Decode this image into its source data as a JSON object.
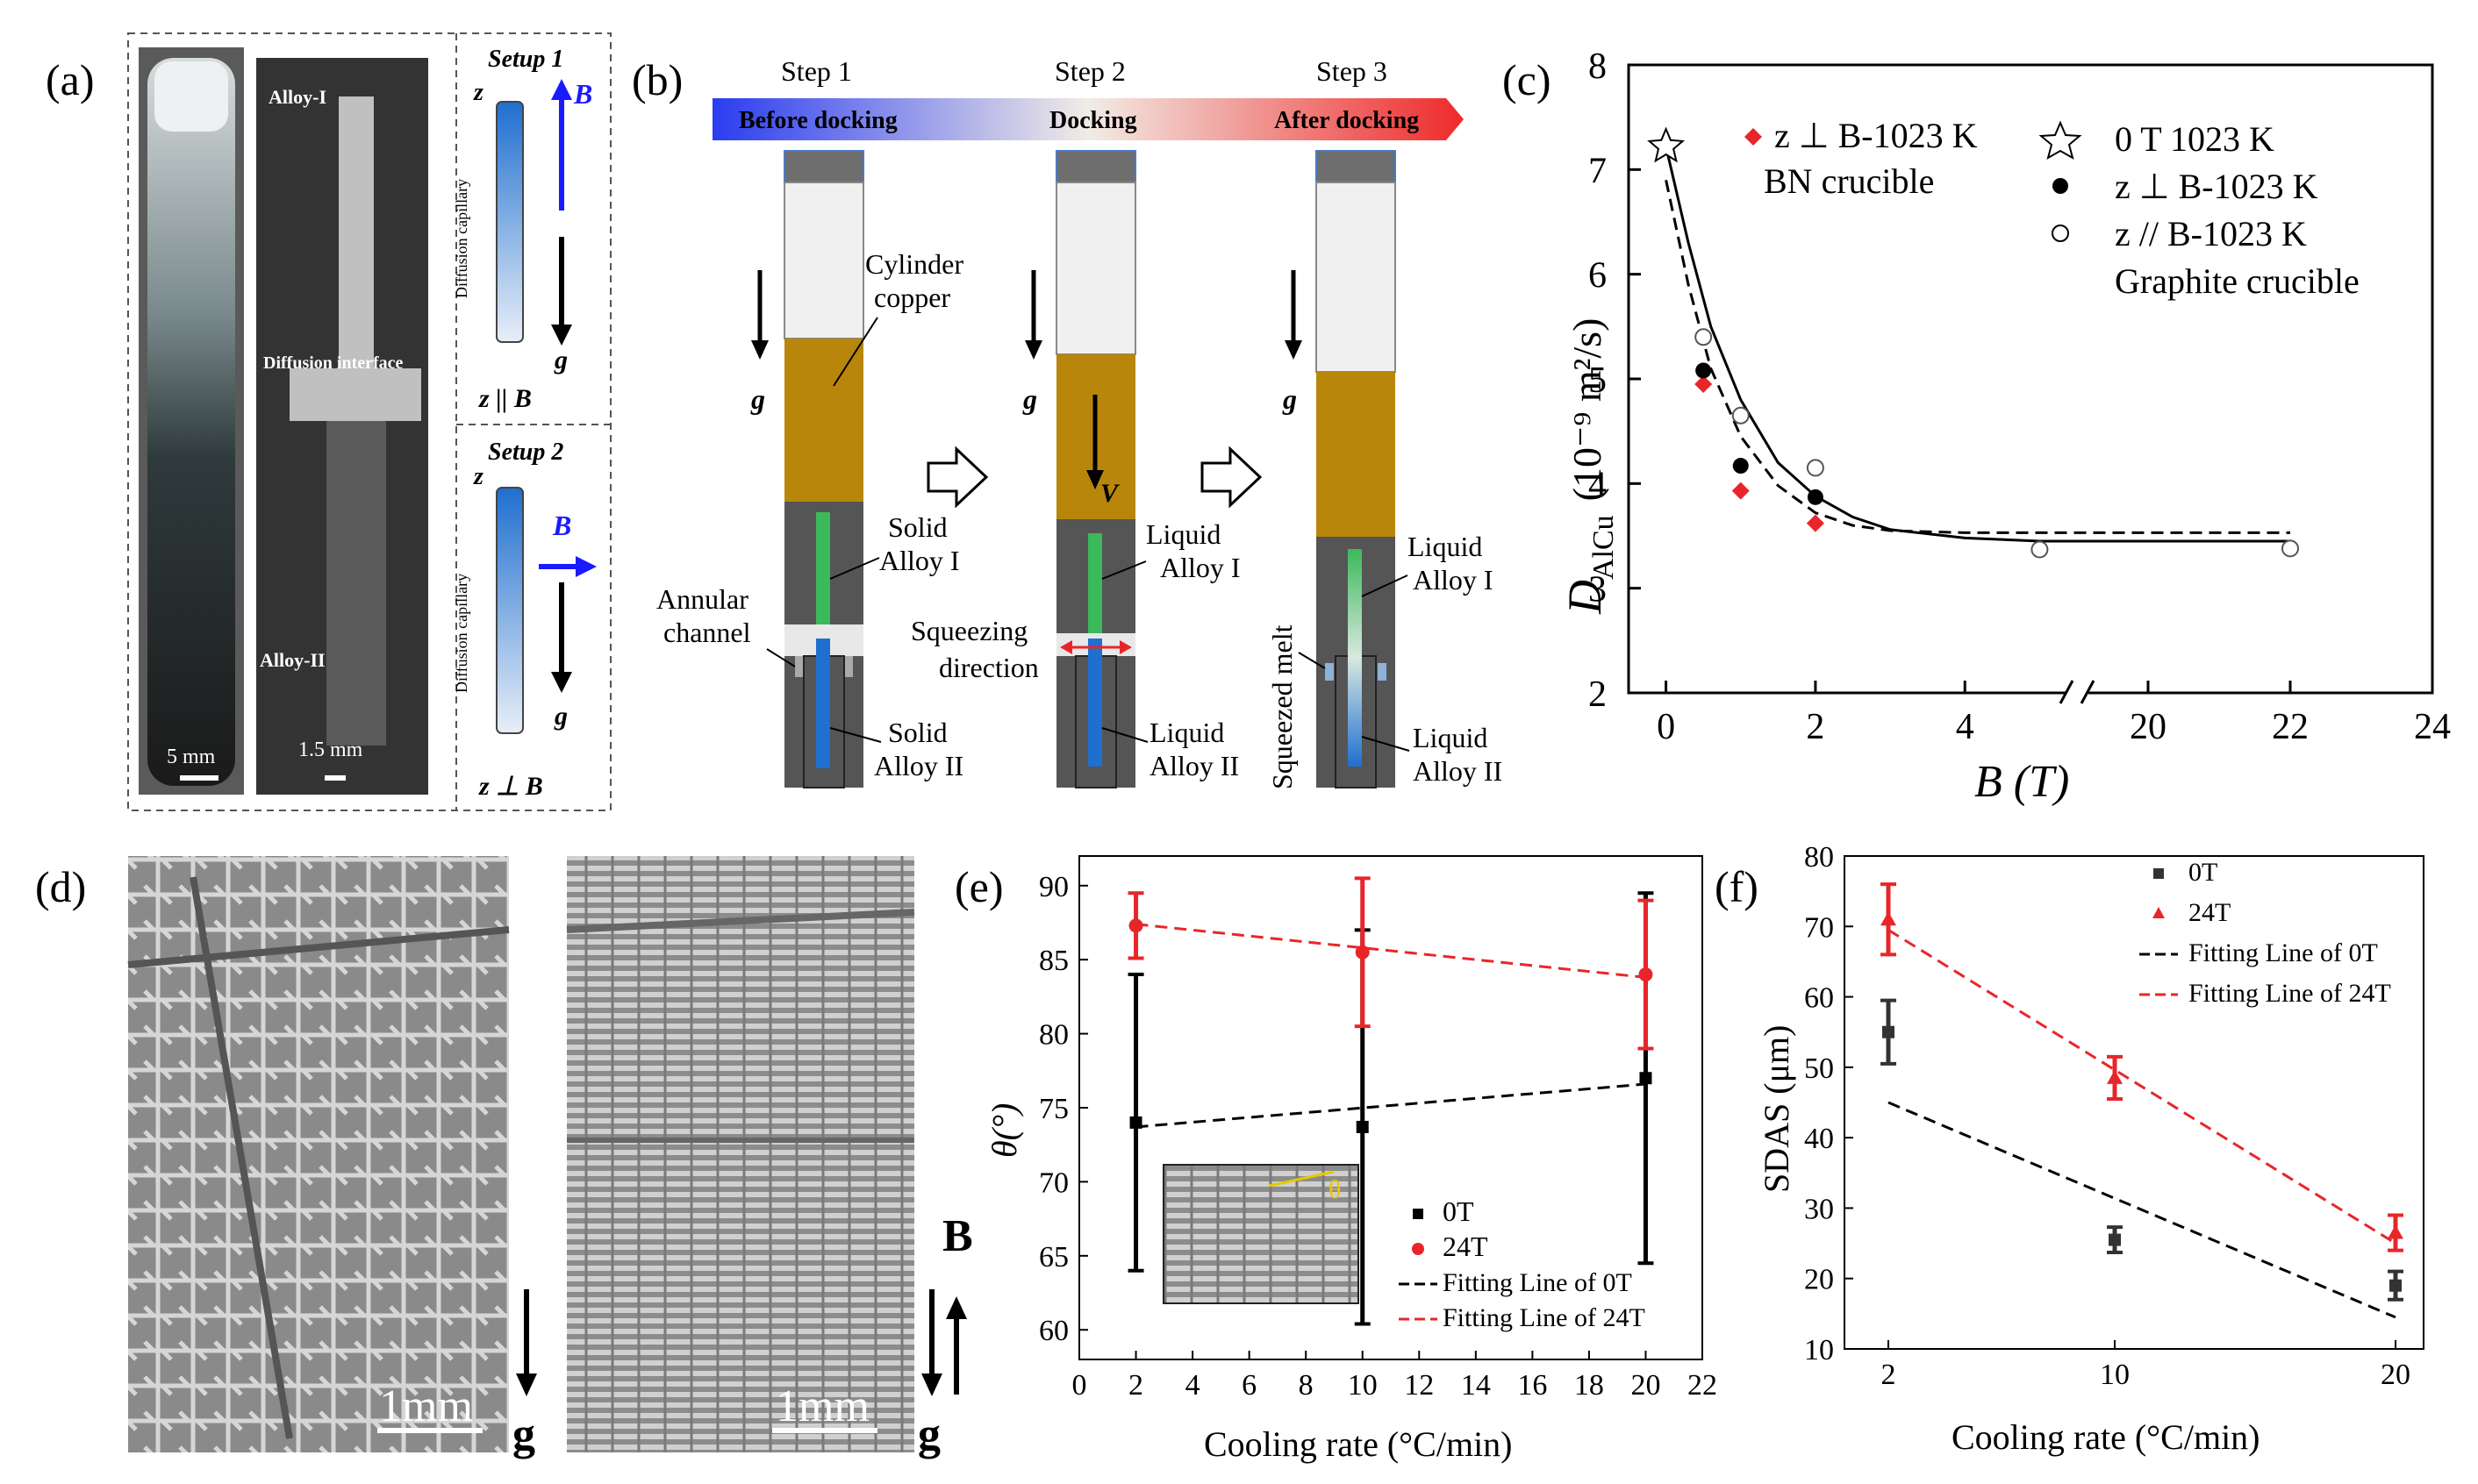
{
  "panel_labels": {
    "a": "(a)",
    "b": "(b)",
    "c": "(c)",
    "d": "(d)",
    "e": "(e)",
    "f": "(f)"
  },
  "colors": {
    "red": "#e8262a",
    "blue": "#1a1aff",
    "gray": "#6a6a6a",
    "dark": "#333333",
    "copper": "#b8860b",
    "green": "#3cb95a",
    "alloy_blue": "#1f6fcf"
  },
  "panel_a": {
    "alloy1": "Alloy-I",
    "interface": "Diffusion interface",
    "alloy2": "Alloy-II",
    "scale1": "5 mm",
    "scale2": "1.5 mm",
    "setup1": {
      "title": "Setup 1",
      "z": "z",
      "B": "B",
      "capillary": "Diffusion capillary",
      "g": "g",
      "relation": "z || B"
    },
    "setup2": {
      "title": "Setup 2",
      "z": "z",
      "B": "B",
      "capillary": "Diffusion capillary",
      "g": "g",
      "relation": "z ⊥ B"
    }
  },
  "panel_b": {
    "steps": [
      "Step 1",
      "Step 2",
      "Step 3"
    ],
    "stages": [
      "Before docking",
      "Docking",
      "After docking"
    ],
    "labels": {
      "cylinder_copper": [
        "Cylinder",
        "copper"
      ],
      "g": "g",
      "v": "V",
      "solid_alloy1": [
        "Solid",
        "Alloy I"
      ],
      "solid_alloy2": [
        "Solid",
        "Alloy II"
      ],
      "annular": [
        "Annular",
        "channel"
      ],
      "liquid_alloy1": [
        "Liquid",
        "Alloy I"
      ],
      "liquid_alloy2": [
        "Liquid",
        "Alloy II"
      ],
      "squeezing": [
        "Squeezing",
        "direction"
      ],
      "squeezed_melt": "Squeezed melt"
    }
  },
  "panel_c": {
    "ylabel_main": "D",
    "ylabel_sub": "AlCu",
    "ylabel_units": "(10⁻⁹ m²/s)",
    "xlabel": "B (T)",
    "legend": {
      "red": "z ⊥ B-1023 K",
      "red2": "BN crucible",
      "star": "0 T 1023 K",
      "black": "z ⊥ B-1023 K",
      "open": "z // B-1023 K",
      "graphite": "Graphite crucible"
    }
  },
  "panel_d": {
    "scale1": "1mm",
    "scale2": "1mm",
    "g1": "g",
    "g2": "g",
    "B": "B"
  },
  "panel_e": {
    "ylabel": "θ(°)",
    "xlabel": "Cooling rate (°C/min)",
    "inset_theta": "θ"
  },
  "panel_f": {
    "ylabel": "SDAS (μm)",
    "xlabel": "Cooling rate (°C/min)"
  },
  "chart_data": [
    {
      "id": "c",
      "type": "scatter",
      "title": "",
      "xlabel": "B (T)",
      "ylabel": "D_AlCu (10^-9 m^2/s)",
      "x_break": [
        5.5,
        19
      ],
      "xlim_low": [
        -0.5,
        5.5
      ],
      "xlim_high": [
        19,
        24
      ],
      "ylim": [
        2,
        8
      ],
      "xticks_low": [
        0,
        2,
        4
      ],
      "xticks_high": [
        20,
        22,
        24
      ],
      "yticks": [
        2,
        3,
        4,
        5,
        6,
        7,
        8
      ],
      "series": [
        {
          "name": "0 T 1023 K",
          "marker": "star",
          "points": [
            [
              0,
              7.22
            ]
          ]
        },
        {
          "name": "z ⊥ B-1023 K (BN crucible)",
          "marker": "red-diamond",
          "points": [
            [
              0.5,
              4.95
            ],
            [
              1,
              3.93
            ],
            [
              2,
              3.62
            ]
          ]
        },
        {
          "name": "z ⊥ B-1023 K",
          "marker": "black-circle",
          "points": [
            [
              0.5,
              5.08
            ],
            [
              1,
              4.17
            ],
            [
              2,
              3.87
            ]
          ]
        },
        {
          "name": "z // B-1023 K (Graphite crucible)",
          "marker": "open-circle",
          "points": [
            [
              0.5,
              5.4
            ],
            [
              1,
              4.65
            ],
            [
              2,
              4.15
            ],
            [
              5,
              3.37
            ],
            [
              22,
              3.38
            ]
          ]
        }
      ],
      "fit_solid": [
        [
          0,
          7.22
        ],
        [
          0.3,
          6.3
        ],
        [
          0.6,
          5.5
        ],
        [
          1,
          4.8
        ],
        [
          1.5,
          4.2
        ],
        [
          2,
          3.88
        ],
        [
          2.5,
          3.68
        ],
        [
          3,
          3.56
        ],
        [
          4,
          3.48
        ],
        [
          5,
          3.45
        ],
        [
          22,
          3.45
        ]
      ],
      "fit_dashed": [
        [
          0,
          6.9
        ],
        [
          0.3,
          5.9
        ],
        [
          0.6,
          5.1
        ],
        [
          1,
          4.45
        ],
        [
          1.5,
          3.98
        ],
        [
          2,
          3.72
        ],
        [
          2.5,
          3.6
        ],
        [
          3,
          3.55
        ],
        [
          4,
          3.53
        ],
        [
          5,
          3.53
        ],
        [
          22,
          3.53
        ]
      ]
    },
    {
      "id": "e",
      "type": "scatter",
      "xlabel": "Cooling rate (°C/min)",
      "ylabel": "θ(°)",
      "xlim": [
        0,
        22
      ],
      "ylim": [
        58,
        92
      ],
      "xticks": [
        0,
        2,
        4,
        6,
        8,
        10,
        12,
        14,
        16,
        18,
        20,
        22
      ],
      "yticks": [
        60,
        65,
        70,
        75,
        80,
        85,
        90
      ],
      "series": [
        {
          "name": "0T",
          "color": "#000000",
          "marker": "square",
          "x": [
            2,
            10,
            20
          ],
          "y": [
            74,
            73.7,
            77
          ],
          "err": [
            10,
            13.3,
            12.5
          ]
        },
        {
          "name": "24T",
          "color": "#e8262a",
          "marker": "circle",
          "x": [
            2,
            10,
            20
          ],
          "y": [
            87.3,
            85.5,
            84
          ],
          "err": [
            2.2,
            5,
            5
          ]
        }
      ],
      "fits": [
        {
          "name": "Fitting Line of 0T",
          "color": "#000000",
          "points": [
            [
              2,
              73.7
            ],
            [
              20,
              76.6
            ]
          ]
        },
        {
          "name": "Fitting Line of 24T",
          "color": "#e8262a",
          "points": [
            [
              2,
              87.4
            ],
            [
              20,
              83.8
            ]
          ]
        }
      ]
    },
    {
      "id": "f",
      "type": "scatter",
      "xlabel": "Cooling rate (°C/min)",
      "ylabel": "SDAS (μm)",
      "ylim": [
        10,
        80
      ],
      "xticks": [
        2,
        10,
        20
      ],
      "yticks": [
        10,
        20,
        30,
        40,
        50,
        60,
        70,
        80
      ],
      "series": [
        {
          "name": "0T",
          "color": "#333333",
          "marker": "square",
          "x": [
            2,
            10,
            20
          ],
          "y": [
            55,
            25.5,
            19
          ],
          "err": [
            4.5,
            1.8,
            2
          ]
        },
        {
          "name": "24T",
          "color": "#e8262a",
          "marker": "triangle",
          "x": [
            2,
            10,
            20
          ],
          "y": [
            71,
            48.5,
            26.5
          ],
          "err": [
            5,
            3,
            2.5
          ]
        }
      ],
      "fits": [
        {
          "name": "Fitting Line of 0T",
          "color": "#000000",
          "points": [
            [
              2,
              45
            ],
            [
              20,
              14.5
            ]
          ]
        },
        {
          "name": "Fitting Line of 24T",
          "color": "#e8262a",
          "points": [
            [
              2,
              69.5
            ],
            [
              20,
              25
            ]
          ]
        }
      ]
    }
  ]
}
